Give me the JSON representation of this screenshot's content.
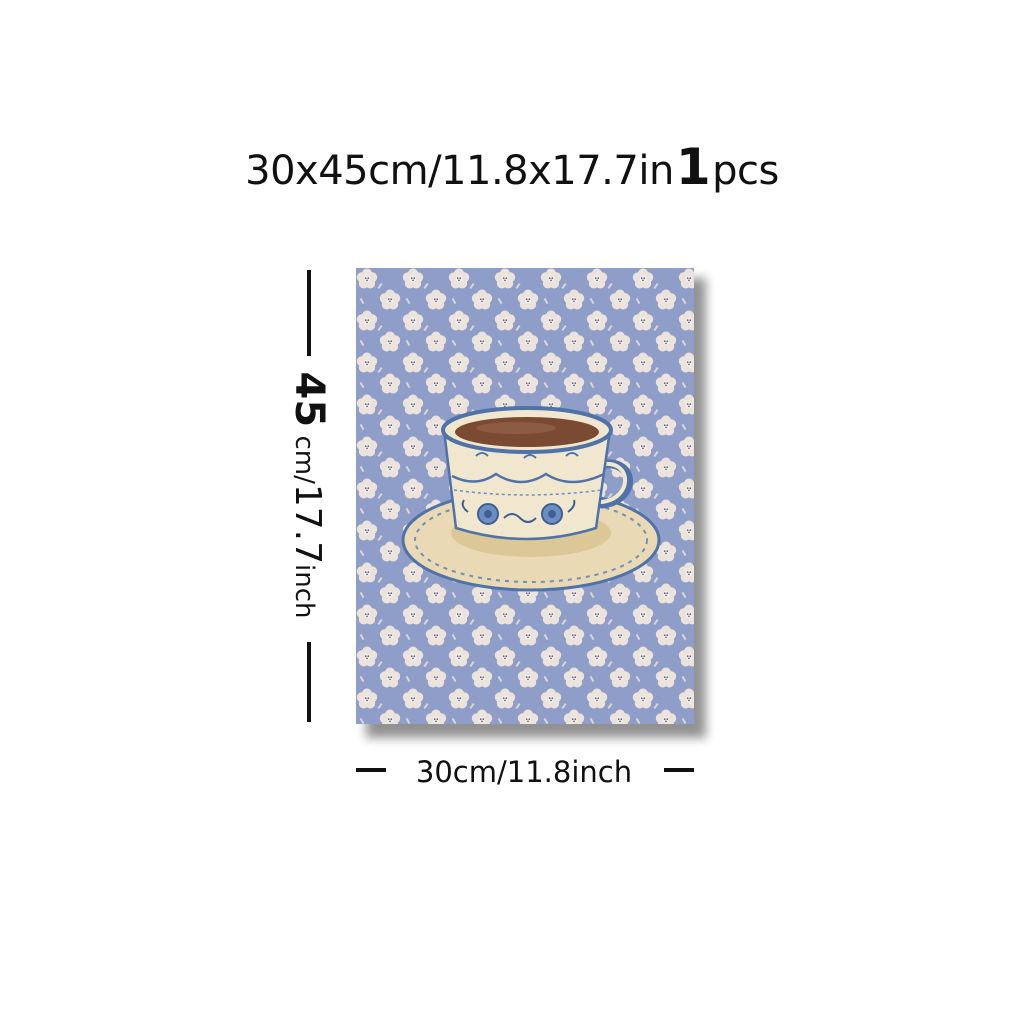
{
  "title": {
    "size_text": "30x45cm/11.8x17.7in",
    "quantity_number": "1",
    "quantity_unit": "pcs"
  },
  "height_label": {
    "value": "45",
    "unit_a": "cm/",
    "value_b": "17.7",
    "unit_b": "inch"
  },
  "width_label": "30cm/11.8inch",
  "artwork": {
    "subject": "teacup-on-saucer-floral-print",
    "colors": {
      "background_blue": "#8f9ec8",
      "flower": "#ece4dc",
      "cup_cream": "#f1e7cf",
      "cup_blue": "#4f73a8",
      "coffee": "#7a4a32",
      "saucer": "#e9d9b4"
    }
  }
}
